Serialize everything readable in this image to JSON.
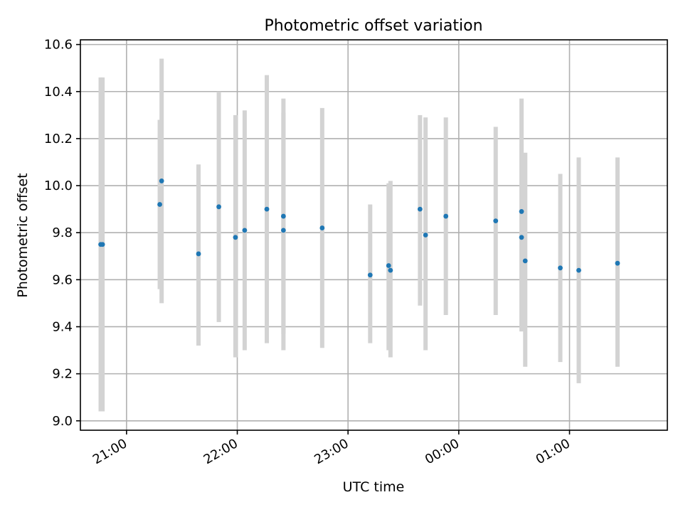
{
  "chart_data": {
    "type": "scatter",
    "title": "Photometric offset variation",
    "xlabel": "UTC time",
    "ylabel": "Photometric offset",
    "x_axis": {
      "kind": "time",
      "unit": "UTC",
      "range": [
        "20:35",
        "01:53"
      ],
      "ticks": [
        "21:00",
        "22:00",
        "23:00",
        "00:00",
        "01:00"
      ]
    },
    "y_axis": {
      "range": [
        8.96,
        10.62
      ],
      "ticks": [
        "9.0",
        "9.2",
        "9.4",
        "9.6",
        "9.8",
        "10.0",
        "10.2",
        "10.4",
        "10.6"
      ]
    },
    "grid": true,
    "errorbar_color": "#d3d3d3",
    "marker_color": "#1f77b4",
    "series": [
      {
        "points": [
          {
            "time": "20:46",
            "y": 9.75,
            "ymin": 9.04,
            "ymax": 10.46
          },
          {
            "time": "20:47",
            "y": 9.75,
            "ymin": 9.04,
            "ymax": 10.46
          },
          {
            "time": "21:18",
            "y": 9.92,
            "ymin": 9.56,
            "ymax": 10.28
          },
          {
            "time": "21:19",
            "y": 10.02,
            "ymin": 9.5,
            "ymax": 10.54
          },
          {
            "time": "21:39",
            "y": 9.71,
            "ymin": 9.32,
            "ymax": 10.09
          },
          {
            "time": "21:50",
            "y": 9.91,
            "ymin": 9.42,
            "ymax": 10.4
          },
          {
            "time": "21:59",
            "y": 9.78,
            "ymin": 9.27,
            "ymax": 10.3
          },
          {
            "time": "22:04",
            "y": 9.81,
            "ymin": 9.3,
            "ymax": 10.32
          },
          {
            "time": "22:16",
            "y": 9.9,
            "ymin": 9.33,
            "ymax": 10.47
          },
          {
            "time": "22:25",
            "y": 9.87,
            "ymin": 9.37,
            "ymax": 10.37
          },
          {
            "time": "22:25",
            "y": 9.81,
            "ymin": 9.3,
            "ymax": 10.31
          },
          {
            "time": "22:46",
            "y": 9.82,
            "ymin": 9.31,
            "ymax": 10.33
          },
          {
            "time": "23:12",
            "y": 9.62,
            "ymin": 9.33,
            "ymax": 9.92
          },
          {
            "time": "23:22",
            "y": 9.66,
            "ymin": 9.3,
            "ymax": 10.01
          },
          {
            "time": "23:23",
            "y": 9.64,
            "ymin": 9.27,
            "ymax": 10.02
          },
          {
            "time": "23:39",
            "y": 9.9,
            "ymin": 9.49,
            "ymax": 10.3
          },
          {
            "time": "23:42",
            "y": 9.79,
            "ymin": 9.3,
            "ymax": 10.29
          },
          {
            "time": "23:53",
            "y": 9.87,
            "ymin": 9.45,
            "ymax": 10.29
          },
          {
            "time": "00:20",
            "y": 9.85,
            "ymin": 9.45,
            "ymax": 10.25
          },
          {
            "time": "00:34",
            "y": 9.89,
            "ymin": 9.4,
            "ymax": 10.37
          },
          {
            "time": "00:34",
            "y": 9.78,
            "ymin": 9.38,
            "ymax": 10.18
          },
          {
            "time": "00:36",
            "y": 9.68,
            "ymin": 9.23,
            "ymax": 10.14
          },
          {
            "time": "00:55",
            "y": 9.65,
            "ymin": 9.25,
            "ymax": 10.05
          },
          {
            "time": "01:05",
            "y": 9.64,
            "ymin": 9.16,
            "ymax": 10.12
          },
          {
            "time": "01:26",
            "y": 9.67,
            "ymin": 9.23,
            "ymax": 10.12
          }
        ]
      }
    ]
  }
}
